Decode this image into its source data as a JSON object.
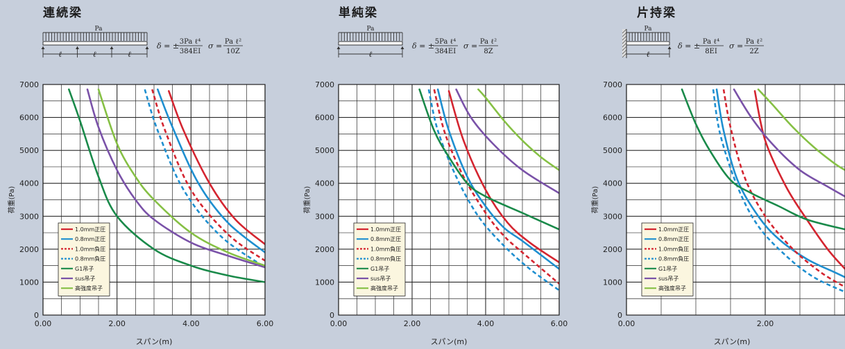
{
  "colors": {
    "background": "#c7cfdc",
    "plot_bg": "#ffffff",
    "grid": "#2a2a2a",
    "legend_bg": "#fbf6df",
    "red": "#d42530",
    "blue": "#1f8fd0",
    "green_dark": "#1a8a4a",
    "purple": "#7a52a8",
    "green_light": "#86c045"
  },
  "legend_items": [
    {
      "label": "1.0mm正圧",
      "color": "#d42530",
      "dashed": false
    },
    {
      "label": "0.8mm正圧",
      "color": "#1f8fd0",
      "dashed": false
    },
    {
      "label": "1.0mm負圧",
      "color": "#d42530",
      "dashed": true
    },
    {
      "label": "0.8mm負圧",
      "color": "#1f8fd0",
      "dashed": true
    },
    {
      "label": "G1吊子",
      "color": "#1a8a4a",
      "dashed": false
    },
    {
      "label": "sus吊子",
      "color": "#7a52a8",
      "dashed": false
    },
    {
      "label": "高強度吊子",
      "color": "#86c045",
      "dashed": false
    }
  ],
  "chart_data": [
    {
      "type": "line",
      "title": "連続梁",
      "diagram": {
        "load_label": "Pa",
        "span_label": "ℓ",
        "deflection_formula": {
          "prefix": "δ = ±",
          "numerator": "3Pa ℓ⁴",
          "denominator": "384EI"
        },
        "stress_formula": {
          "prefix": "σ =",
          "numerator": "Pa ℓ²",
          "denominator": "10Z"
        }
      },
      "xlabel": "スパン(m)",
      "ylabel": "荷重(Pa)",
      "xlim": [
        0,
        6
      ],
      "ylim": [
        0,
        7000
      ],
      "x_ticks": [
        "0.00",
        "2.00",
        "4.00",
        "6.00"
      ],
      "y_ticks": [
        "0",
        "1000",
        "2000",
        "3000",
        "4000",
        "5000",
        "6000",
        "7000"
      ],
      "grid": true,
      "legend_position": "bottom-left",
      "series": [
        {
          "name": "1.0mm正圧",
          "color": "#d42530",
          "dashed": false,
          "x": [
            3.4,
            3.8,
            4.5,
            5.2,
            6.0
          ],
          "y": [
            6800,
            5600,
            4000,
            2900,
            2150
          ]
        },
        {
          "name": "0.8mm正圧",
          "color": "#1f8fd0",
          "dashed": false,
          "x": [
            3.1,
            3.5,
            4.2,
            5.0,
            6.0
          ],
          "y": [
            6850,
            5700,
            4000,
            2800,
            1900
          ]
        },
        {
          "name": "1.0mm負圧",
          "color": "#d42530",
          "dashed": true,
          "x": [
            2.95,
            3.3,
            4.0,
            5.0,
            6.0
          ],
          "y": [
            6850,
            5600,
            3800,
            2450,
            1650
          ]
        },
        {
          "name": "0.8mm負圧",
          "color": "#1f8fd0",
          "dashed": true,
          "x": [
            2.75,
            3.1,
            3.8,
            4.8,
            6.0
          ],
          "y": [
            6850,
            5600,
            3800,
            2400,
            1450
          ]
        },
        {
          "name": "G1吊子",
          "color": "#1a8a4a",
          "dashed": false,
          "x": [
            0.7,
            1.0,
            1.5,
            2.0,
            3.0,
            4.0,
            5.0,
            6.0
          ],
          "y": [
            6850,
            5900,
            4200,
            3000,
            2000,
            1500,
            1200,
            1000
          ]
        },
        {
          "name": "sus吊子",
          "color": "#7a52a8",
          "dashed": false,
          "x": [
            1.2,
            1.5,
            2.0,
            2.5,
            3.0,
            4.0,
            5.0,
            6.0
          ],
          "y": [
            6850,
            5700,
            4400,
            3500,
            2900,
            2200,
            1800,
            1450
          ]
        },
        {
          "name": "高強度吊子",
          "color": "#86c045",
          "dashed": false,
          "x": [
            1.5,
            2.0,
            2.5,
            3.0,
            4.0,
            5.0,
            6.0
          ],
          "y": [
            6850,
            5200,
            4200,
            3500,
            2500,
            1900,
            1500
          ]
        }
      ]
    },
    {
      "type": "line",
      "title": "単純梁",
      "diagram": {
        "load_label": "Pa",
        "span_label": "ℓ",
        "deflection_formula": {
          "prefix": "δ = ±",
          "numerator": "5Pa ℓ⁴",
          "denominator": "384EI"
        },
        "stress_formula": {
          "prefix": "σ =",
          "numerator": "Pa ℓ²",
          "denominator": "8Z"
        }
      },
      "xlabel": "スパン(m)",
      "ylabel": "荷重(Pa)",
      "xlim": [
        0,
        6
      ],
      "ylim": [
        0,
        7000
      ],
      "x_ticks": [
        "0.00",
        "2.00",
        "4.00",
        "6.00"
      ],
      "y_ticks": [
        "0",
        "1000",
        "2000",
        "3000",
        "4000",
        "5000",
        "6000",
        "7000"
      ],
      "grid": true,
      "legend_position": "bottom-left",
      "series": [
        {
          "name": "1.0mm正圧",
          "color": "#d42530",
          "dashed": false,
          "x": [
            3.0,
            3.4,
            4.0,
            4.6,
            5.2,
            6.0
          ],
          "y": [
            6800,
            5300,
            3800,
            2800,
            2200,
            1600
          ]
        },
        {
          "name": "0.8mm正圧",
          "color": "#1f8fd0",
          "dashed": false,
          "x": [
            2.7,
            3.0,
            3.5,
            4.0,
            4.5,
            5.0,
            6.0
          ],
          "y": [
            6850,
            5600,
            4200,
            3300,
            2650,
            2250,
            1400
          ]
        },
        {
          "name": "1.0mm負圧",
          "color": "#d42530",
          "dashed": true,
          "x": [
            2.6,
            2.9,
            3.4,
            4.0,
            4.5,
            5.0,
            6.0
          ],
          "y": [
            6850,
            5500,
            4200,
            3100,
            2400,
            1900,
            950
          ]
        },
        {
          "name": "0.8mm負圧",
          "color": "#1f8fd0",
          "dashed": true,
          "x": [
            2.45,
            2.7,
            3.2,
            3.8,
            4.5,
            5.2,
            6.0
          ],
          "y": [
            6850,
            5600,
            4200,
            3000,
            2100,
            1400,
            750
          ]
        },
        {
          "name": "G1吊子",
          "color": "#1a8a4a",
          "dashed": false,
          "x": [
            2.2,
            2.6,
            3.0,
            3.5,
            4.0,
            5.0,
            6.0
          ],
          "y": [
            6850,
            5600,
            4800,
            4000,
            3600,
            3100,
            2600
          ]
        },
        {
          "name": "sus吊子",
          "color": "#7a52a8",
          "dashed": false,
          "x": [
            3.2,
            3.6,
            4.2,
            5.0,
            6.0
          ],
          "y": [
            6850,
            6000,
            5200,
            4400,
            3700
          ]
        },
        {
          "name": "高強度吊子",
          "color": "#86c045",
          "dashed": false,
          "x": [
            3.8,
            4.0,
            4.5,
            5.0,
            5.5,
            6.0
          ],
          "y": [
            6850,
            6600,
            5900,
            5300,
            4800,
            4400
          ]
        }
      ]
    },
    {
      "type": "line",
      "title": "片持梁",
      "diagram": {
        "load_label": "Pa",
        "span_label": "ℓ",
        "deflection_formula": {
          "prefix": "δ = ±",
          "numerator": "Pa ℓ⁴",
          "denominator": "8EI"
        },
        "stress_formula": {
          "prefix": "σ =",
          "numerator": "Pa ℓ²",
          "denominator": "2Z"
        }
      },
      "xlabel": "スパン(m)",
      "ylabel": "荷重(Pa)",
      "xlim": [
        0,
        3.15
      ],
      "ylim": [
        0,
        7000
      ],
      "x_ticks": [
        "0.00",
        "2.00"
      ],
      "y_ticks": [
        "0",
        "1000",
        "2000",
        "3000",
        "4000",
        "5000",
        "6000",
        "7000"
      ],
      "grid": true,
      "legend_position": "bottom-left",
      "series": [
        {
          "name": "1.0mm正圧",
          "color": "#d42530",
          "dashed": false,
          "x": [
            1.85,
            2.0,
            2.3,
            2.6,
            2.9,
            3.15
          ],
          "y": [
            6800,
            5300,
            3900,
            2900,
            2000,
            1400
          ]
        },
        {
          "name": "0.8mm正圧",
          "color": "#1f8fd0",
          "dashed": false,
          "x": [
            1.3,
            1.4,
            1.6,
            1.9,
            2.2,
            2.6,
            3.0,
            3.15
          ],
          "y": [
            6850,
            5600,
            4100,
            3000,
            2300,
            1700,
            1300,
            1150
          ]
        },
        {
          "name": "1.0mm負圧",
          "color": "#d42530",
          "dashed": true,
          "x": [
            1.4,
            1.5,
            1.7,
            2.0,
            2.4,
            2.8,
            3.15
          ],
          "y": [
            6850,
            5700,
            4200,
            3000,
            2000,
            1300,
            850
          ]
        },
        {
          "name": "0.8mm負圧",
          "color": "#1f8fd0",
          "dashed": true,
          "x": [
            1.25,
            1.35,
            1.6,
            1.9,
            2.3,
            2.7,
            3.15
          ],
          "y": [
            6850,
            5500,
            3900,
            2700,
            1800,
            1150,
            700
          ]
        },
        {
          "name": "G1吊子",
          "color": "#1a8a4a",
          "dashed": false,
          "x": [
            0.8,
            1.0,
            1.2,
            1.5,
            1.8,
            2.2,
            2.6,
            3.15
          ],
          "y": [
            6850,
            5800,
            5000,
            4100,
            3700,
            3300,
            2900,
            2600
          ]
        },
        {
          "name": "sus吊子",
          "color": "#7a52a8",
          "dashed": false,
          "x": [
            1.55,
            1.8,
            2.1,
            2.5,
            2.9,
            3.15
          ],
          "y": [
            6850,
            6000,
            5200,
            4400,
            3900,
            3600
          ]
        },
        {
          "name": "高強度吊子",
          "color": "#86c045",
          "dashed": false,
          "x": [
            1.9,
            2.1,
            2.4,
            2.7,
            3.0,
            3.15
          ],
          "y": [
            6850,
            6400,
            5700,
            5100,
            4600,
            4400
          ]
        }
      ]
    }
  ]
}
